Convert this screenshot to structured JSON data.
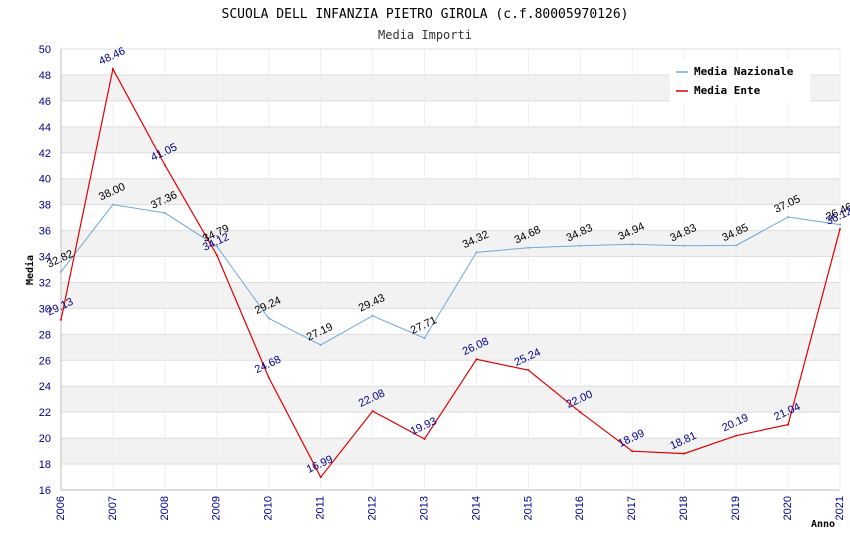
{
  "chart_data": {
    "type": "line",
    "title": "SCUOLA DELL INFANZIA PIETRO GIROLA (c.f.80005970126)",
    "subtitle": "Media Importi",
    "xlabel": "Anno",
    "ylabel": "Media",
    "ylim": [
      16,
      50
    ],
    "y_ticks": [
      "16",
      "18",
      "20",
      "22",
      "24",
      "26",
      "28",
      "30",
      "32",
      "34",
      "36",
      "38",
      "40",
      "42",
      "44",
      "46",
      "48",
      "50"
    ],
    "categories": [
      "2006",
      "2007",
      "2008",
      "2009",
      "2010",
      "2011",
      "2012",
      "2013",
      "2014",
      "2015",
      "2016",
      "2017",
      "2018",
      "2019",
      "2020",
      "2021"
    ],
    "grid": true,
    "legend_position": "top-right",
    "series": [
      {
        "name": "Media Nazionale",
        "color": "#6fa8dc",
        "values": [
          32.82,
          38.0,
          37.36,
          34.79,
          29.24,
          27.19,
          29.43,
          27.71,
          34.32,
          34.68,
          34.83,
          34.94,
          34.83,
          34.85,
          37.05,
          36.46
        ],
        "labels": [
          "32.82",
          "38.00",
          "37.36",
          "34.79",
          "29.24",
          "27.19",
          "29.43",
          "27.71",
          "34.32",
          "34.68",
          "34.83",
          "34.94",
          "34.83",
          "34.85",
          "37.05",
          "36.46"
        ]
      },
      {
        "name": "Media Ente",
        "color": "#e00000",
        "values": [
          29.13,
          48.46,
          41.05,
          34.12,
          24.68,
          16.99,
          22.08,
          19.93,
          26.08,
          25.24,
          22.0,
          18.99,
          18.81,
          20.19,
          21.04,
          36.12
        ],
        "labels": [
          "29.13",
          "48.46",
          "41.05",
          "34.12",
          "24.68",
          "16.99",
          "22.08",
          "19.93",
          "26.08",
          "25.24",
          "22.00",
          "18.99",
          "18.81",
          "20.19",
          "21.04",
          "36.12"
        ]
      }
    ]
  }
}
